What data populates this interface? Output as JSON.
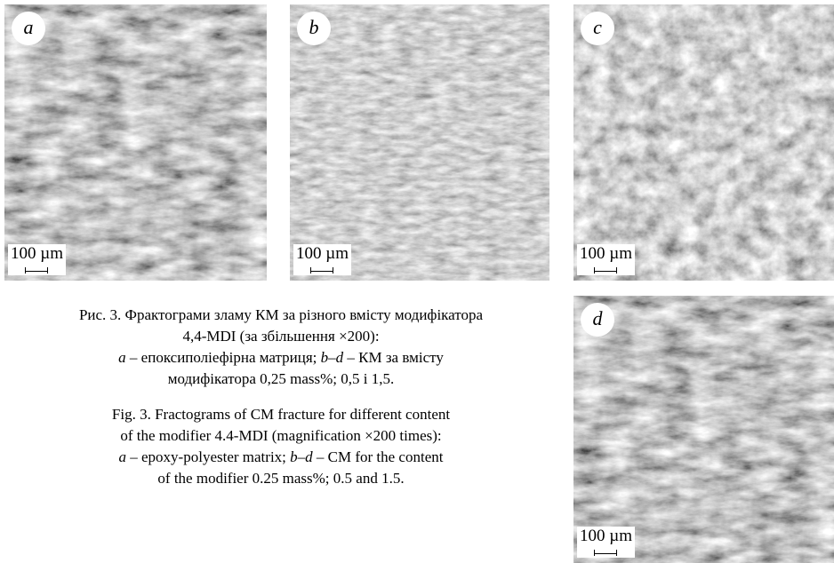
{
  "panels": [
    {
      "label": "a",
      "scale_label": "100 µm"
    },
    {
      "label": "b",
      "scale_label": "100 µm"
    },
    {
      "label": "c",
      "scale_label": "100 µm"
    },
    {
      "label": "d",
      "scale_label": "100 µm"
    }
  ],
  "caption_uk": {
    "lines": [
      [
        {
          "text": "Рис. 3. Фрактограми зламу КМ за різного вмісту модифікатора"
        }
      ],
      [
        {
          "text": "4,4-MDI (за збільшення ×200):"
        }
      ],
      [
        {
          "text": "a",
          "italic": true
        },
        {
          "text": " – епоксиполіефірна матриця; "
        },
        {
          "text": "b–d",
          "italic": true
        },
        {
          "text": " – КМ за вмісту"
        }
      ],
      [
        {
          "text": "модифікатора 0,25 mass%; 0,5 і 1,5."
        }
      ]
    ]
  },
  "caption_en": {
    "lines": [
      [
        {
          "text": "Fig. 3. Fractograms of CM fracture for different content"
        }
      ],
      [
        {
          "text": "of the modifier 4.4-MDI (magnification ×200 times):"
        }
      ],
      [
        {
          "text": "a",
          "italic": true
        },
        {
          "text": " – epoxy-polyester matrix; "
        },
        {
          "text": "b–d",
          "italic": true
        },
        {
          "text": " – CM for the content"
        }
      ],
      [
        {
          "text": "of the modifier 0.25 mass%; 0.5 and 1.5."
        }
      ]
    ]
  }
}
